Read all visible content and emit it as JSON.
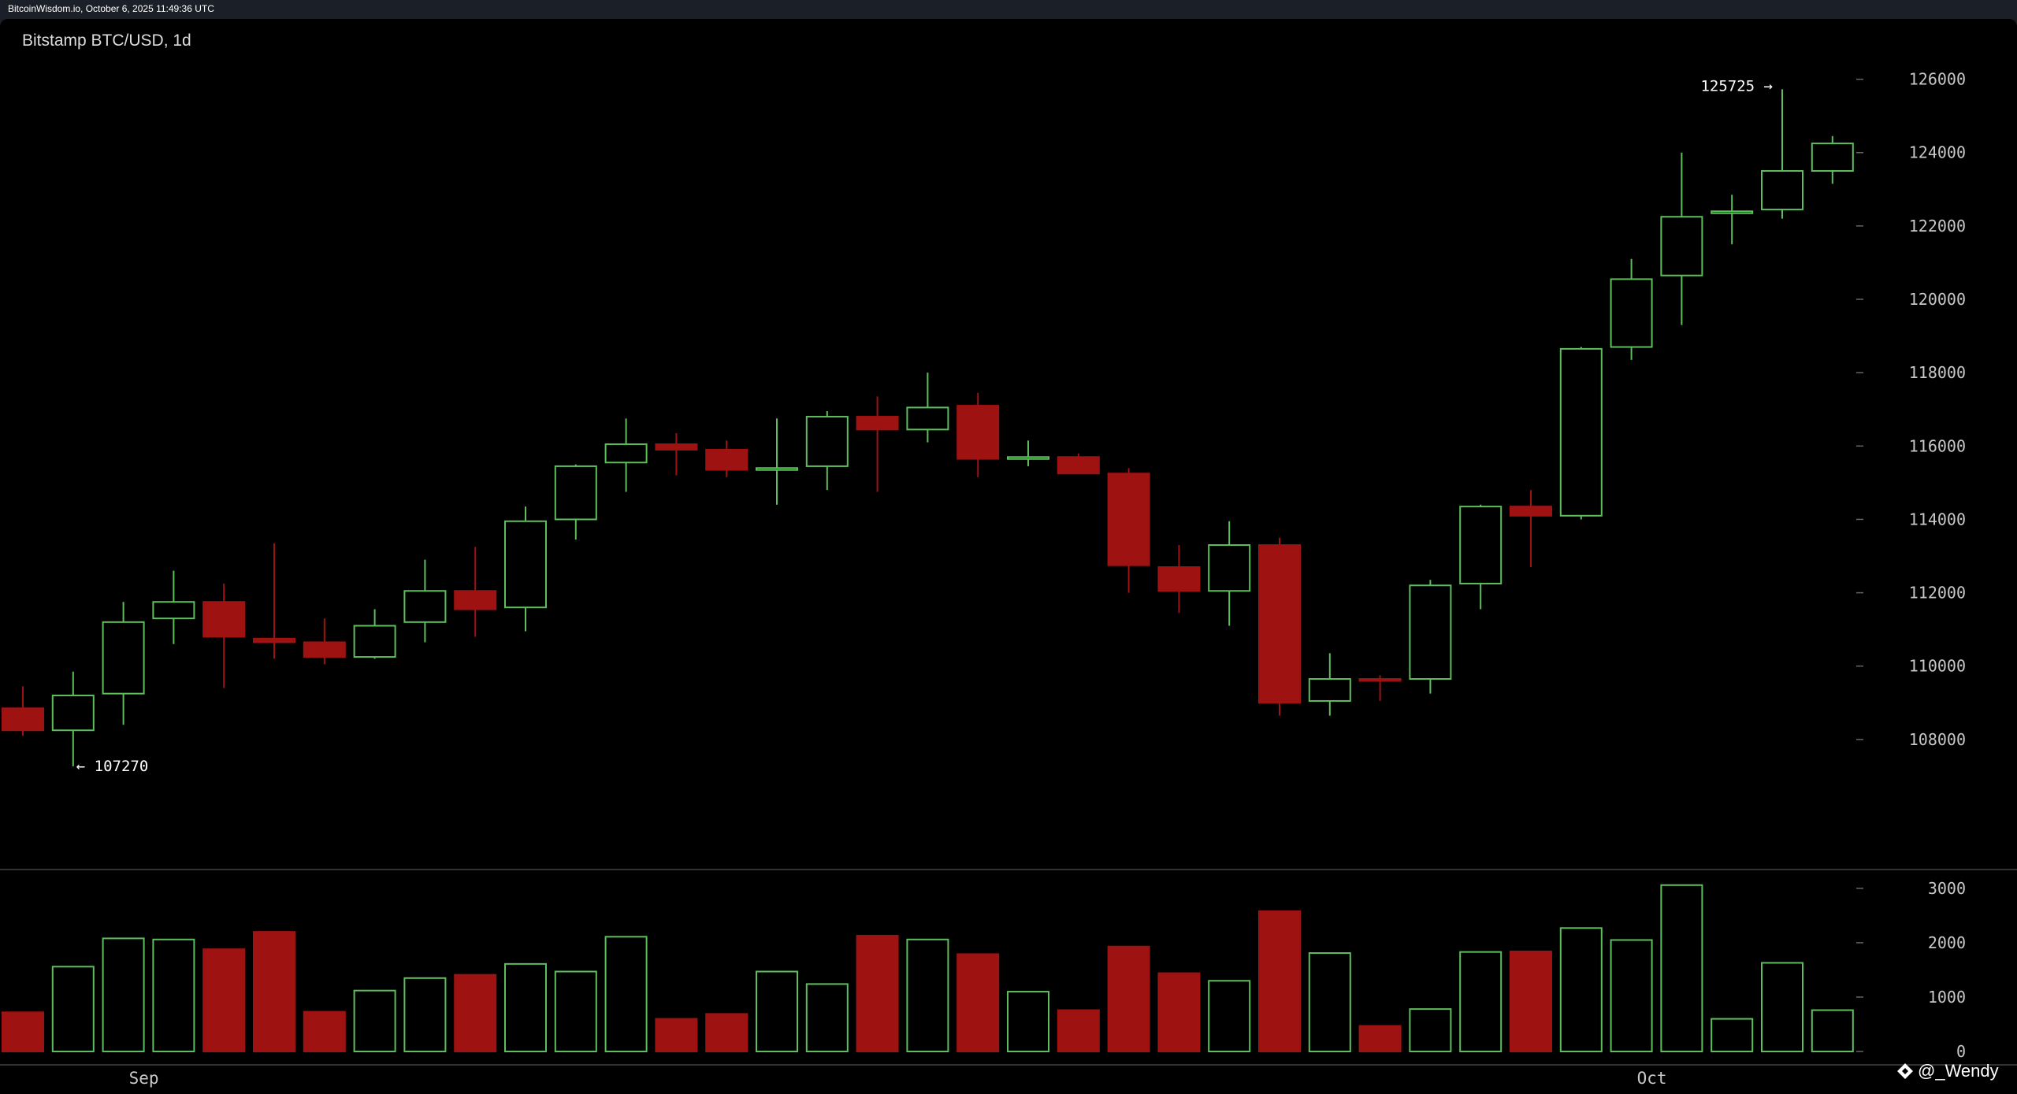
{
  "window": {
    "caption": "BitcoinWisdom.io, October 6, 2025 11:49:36 UTC"
  },
  "chart_data": {
    "type": "candlestick",
    "title": "Bitstamp BTC/USD, 1d",
    "price_ylim": [
      106000,
      126700
    ],
    "price_ticks": [
      108000,
      110000,
      112000,
      114000,
      116000,
      118000,
      120000,
      122000,
      124000,
      126000
    ],
    "volume_ylim": [
      0,
      3100
    ],
    "volume_ticks": [
      0,
      1000,
      2000,
      3000
    ],
    "x_labels": [
      {
        "label": "Sep",
        "index": 2
      },
      {
        "label": "Oct",
        "index": 32
      }
    ],
    "annotations": {
      "high_label": "125725 →",
      "low_label": "← 107270",
      "high": 125725,
      "low": 107270
    },
    "colors": {
      "up": "#5cbf5c",
      "down": "#9e1212",
      "grid": "#3a3a3a",
      "text": "#c8c8c8"
    },
    "candles": [
      {
        "o": 108850,
        "h": 109450,
        "l": 108100,
        "c": 108250,
        "v": 720
      },
      {
        "o": 108250,
        "h": 109850,
        "l": 107270,
        "c": 109200,
        "v": 1560
      },
      {
        "o": 109250,
        "h": 111750,
        "l": 108400,
        "c": 111200,
        "v": 2080
      },
      {
        "o": 111300,
        "h": 112600,
        "l": 110600,
        "c": 111750,
        "v": 2060
      },
      {
        "o": 111750,
        "h": 112250,
        "l": 109400,
        "c": 110800,
        "v": 1880
      },
      {
        "o": 110750,
        "h": 113350,
        "l": 110200,
        "c": 110650,
        "v": 2200
      },
      {
        "o": 110650,
        "h": 111300,
        "l": 110050,
        "c": 110250,
        "v": 730
      },
      {
        "o": 110250,
        "h": 111550,
        "l": 110200,
        "c": 111100,
        "v": 1120
      },
      {
        "o": 111200,
        "h": 112900,
        "l": 110650,
        "c": 112050,
        "v": 1350
      },
      {
        "o": 112050,
        "h": 113250,
        "l": 110800,
        "c": 111550,
        "v": 1410
      },
      {
        "o": 111600,
        "h": 114350,
        "l": 110950,
        "c": 113950,
        "v": 1610
      },
      {
        "o": 114000,
        "h": 115500,
        "l": 113450,
        "c": 115450,
        "v": 1470
      },
      {
        "o": 115550,
        "h": 116750,
        "l": 114750,
        "c": 116050,
        "v": 2110
      },
      {
        "o": 116050,
        "h": 116350,
        "l": 115200,
        "c": 115900,
        "v": 600
      },
      {
        "o": 115900,
        "h": 116150,
        "l": 115150,
        "c": 115350,
        "v": 690
      },
      {
        "o": 115350,
        "h": 116750,
        "l": 114400,
        "c": 115400,
        "v": 1470
      },
      {
        "o": 115450,
        "h": 116950,
        "l": 114800,
        "c": 116800,
        "v": 1240
      },
      {
        "o": 116800,
        "h": 117350,
        "l": 114750,
        "c": 116450,
        "v": 2130
      },
      {
        "o": 116450,
        "h": 118000,
        "l": 116100,
        "c": 117050,
        "v": 2060
      },
      {
        "o": 117100,
        "h": 117450,
        "l": 115150,
        "c": 115650,
        "v": 1790
      },
      {
        "o": 115650,
        "h": 116150,
        "l": 115450,
        "c": 115700,
        "v": 1100
      },
      {
        "o": 115700,
        "h": 115800,
        "l": 115250,
        "c": 115250,
        "v": 760
      },
      {
        "o": 115250,
        "h": 115400,
        "l": 112000,
        "c": 112750,
        "v": 1930
      },
      {
        "o": 112700,
        "h": 113300,
        "l": 111450,
        "c": 112050,
        "v": 1440
      },
      {
        "o": 112050,
        "h": 113950,
        "l": 111100,
        "c": 113300,
        "v": 1300
      },
      {
        "o": 113300,
        "h": 113500,
        "l": 108650,
        "c": 109000,
        "v": 2580
      },
      {
        "o": 109050,
        "h": 110350,
        "l": 108650,
        "c": 109650,
        "v": 1810
      },
      {
        "o": 109650,
        "h": 109750,
        "l": 109050,
        "c": 109600,
        "v": 470
      },
      {
        "o": 109650,
        "h": 112350,
        "l": 109250,
        "c": 112200,
        "v": 780
      },
      {
        "o": 112250,
        "h": 114400,
        "l": 111550,
        "c": 114350,
        "v": 1830
      },
      {
        "o": 114350,
        "h": 114800,
        "l": 112700,
        "c": 114100,
        "v": 1840
      },
      {
        "o": 114100,
        "h": 118700,
        "l": 114000,
        "c": 118650,
        "v": 2270
      },
      {
        "o": 118700,
        "h": 121100,
        "l": 118350,
        "c": 120550,
        "v": 2050
      },
      {
        "o": 120650,
        "h": 124000,
        "l": 119300,
        "c": 122250,
        "v": 3060
      },
      {
        "o": 122350,
        "h": 122850,
        "l": 121500,
        "c": 122400,
        "v": 600
      },
      {
        "o": 122450,
        "h": 125725,
        "l": 122200,
        "c": 123500,
        "v": 1630
      },
      {
        "o": 123500,
        "h": 124450,
        "l": 123150,
        "c": 124250,
        "v": 760
      }
    ]
  },
  "watermark": {
    "text": "@_Wendy"
  }
}
